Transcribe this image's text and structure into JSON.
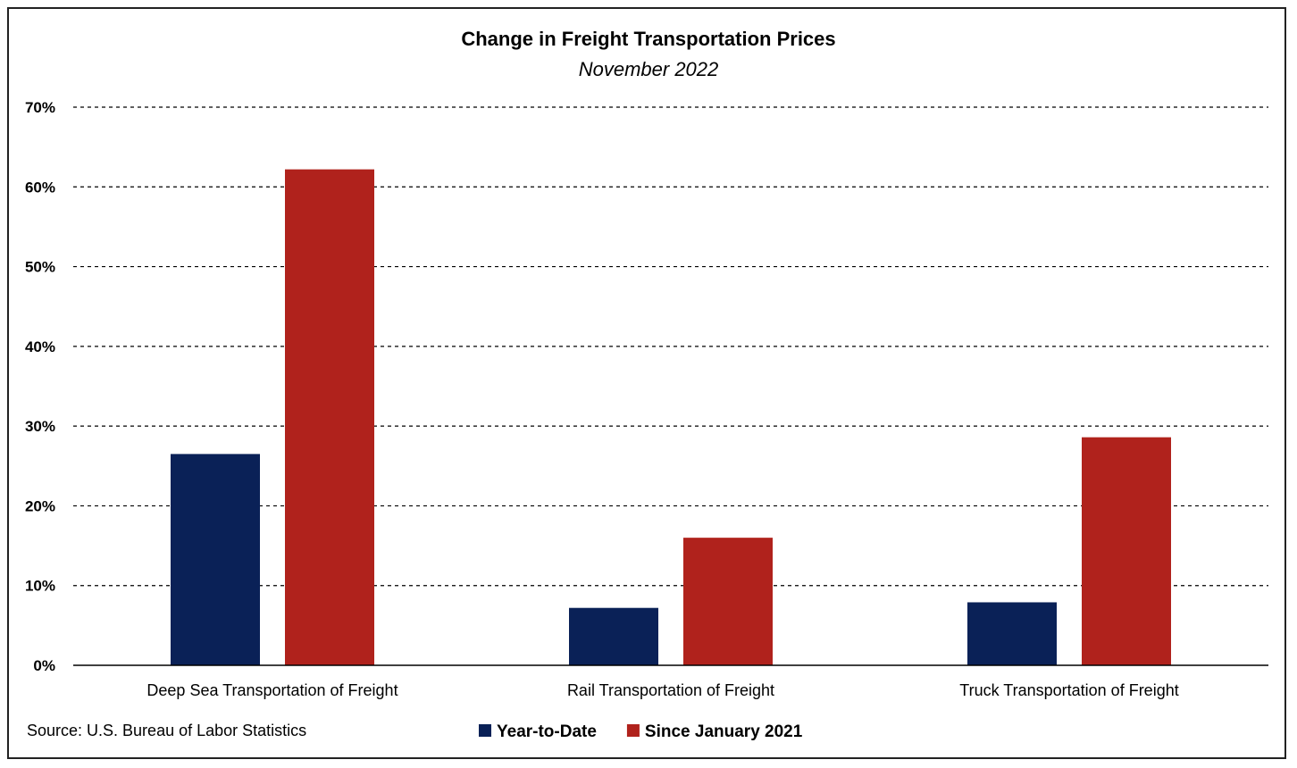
{
  "chart_data": {
    "type": "bar",
    "title": "Change in Freight Transportation Prices",
    "subtitle": "November 2022",
    "categories": [
      "Deep Sea Transportation of Freight",
      "Rail Transportation of Freight",
      "Truck Transportation of Freight"
    ],
    "series": [
      {
        "name": "Year-to-Date",
        "color": "#0a2157",
        "values": [
          26.5,
          7.2,
          7.9
        ]
      },
      {
        "name": "Since January 2021",
        "color": "#b0221c",
        "values": [
          62.2,
          16.0,
          28.6
        ]
      }
    ],
    "ylim": [
      0,
      70
    ],
    "yticks": [
      0,
      10,
      20,
      30,
      40,
      50,
      60,
      70
    ],
    "ytick_labels": [
      "0%",
      "10%",
      "20%",
      "30%",
      "40%",
      "50%",
      "60%",
      "70%"
    ],
    "grid": true,
    "legend_position": "bottom"
  },
  "source": "Source: U.S. Bureau of Labor Statistics"
}
